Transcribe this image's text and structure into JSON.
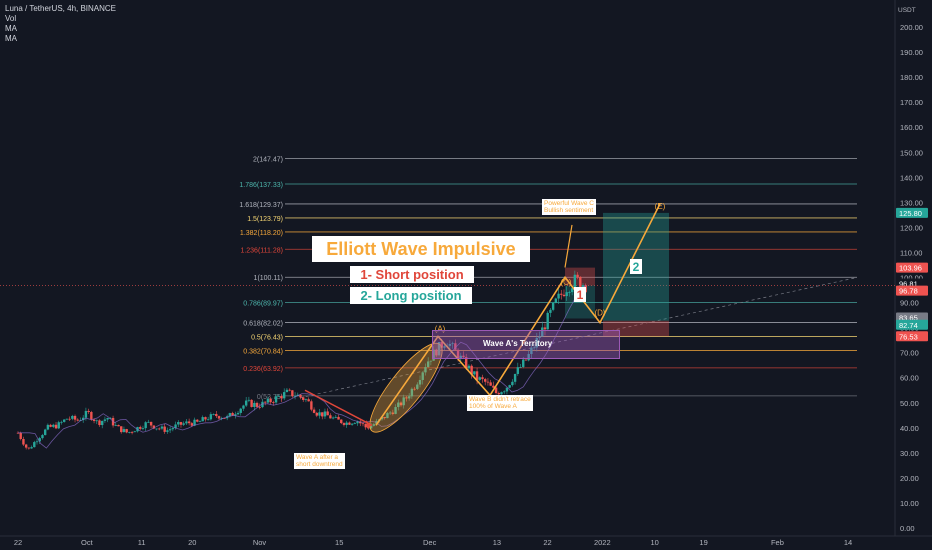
{
  "header": {
    "symbol_line": "Luna / TetherUS, 4h, BINANCE",
    "indicators": [
      "Vol",
      "MA",
      "MA"
    ]
  },
  "colors": {
    "background": "#131722",
    "up_candle": "#26a69a",
    "down_candle": "#ef5350",
    "fib_line": "#b2b5be",
    "wave_orange": "#f7a93b",
    "wave_red": "#e0463a",
    "box_purple": "#9b59b6"
  },
  "chart_data": {
    "type": "candlestick",
    "title": "Luna / TetherUS, 4h, BINANCE",
    "y_axis": {
      "unit": "USDT",
      "min": 0,
      "max": 210,
      "ticks": [
        0,
        10,
        20,
        30,
        40,
        50,
        60,
        70,
        80,
        90,
        100,
        110,
        120,
        130,
        140,
        150,
        160,
        170,
        180,
        190,
        200
      ],
      "tick_labels": [
        "0.00",
        "10.00",
        "20.00",
        "30.00",
        "40.00",
        "50.00",
        "60.00",
        "70.00",
        "80.00",
        "90.00",
        "100.00",
        "110.00",
        "120.00",
        "130.00",
        "140.00",
        "150.00",
        "160.00",
        "170.00",
        "180.00",
        "190.00",
        "200.00"
      ]
    },
    "x_axis": {
      "ticks": [
        {
          "label": "22",
          "x_frac": 0.0
        },
        {
          "label": "Oct",
          "x_frac": 0.083
        },
        {
          "label": "11",
          "x_frac": 0.149
        },
        {
          "label": "20",
          "x_frac": 0.21
        },
        {
          "label": "Nov",
          "x_frac": 0.291
        },
        {
          "label": "15",
          "x_frac": 0.387
        },
        {
          "label": "Dec",
          "x_frac": 0.496
        },
        {
          "label": "13",
          "x_frac": 0.577
        },
        {
          "label": "22",
          "x_frac": 0.638
        },
        {
          "label": "2022",
          "x_frac": 0.704
        },
        {
          "label": "10",
          "x_frac": 0.767
        },
        {
          "label": "19",
          "x_frac": 0.826
        },
        {
          "label": "Feb",
          "x_frac": 0.915
        },
        {
          "label": "14",
          "x_frac": 1.0
        }
      ]
    },
    "price_path": [
      [
        0.0,
        38
      ],
      [
        0.012,
        31
      ],
      [
        0.024,
        36
      ],
      [
        0.036,
        40
      ],
      [
        0.048,
        41
      ],
      [
        0.06,
        44
      ],
      [
        0.072,
        43
      ],
      [
        0.084,
        46
      ],
      [
        0.096,
        42
      ],
      [
        0.108,
        44
      ],
      [
        0.12,
        40
      ],
      [
        0.132,
        38
      ],
      [
        0.144,
        40
      ],
      [
        0.156,
        42
      ],
      [
        0.168,
        40
      ],
      [
        0.18,
        39
      ],
      [
        0.192,
        41
      ],
      [
        0.204,
        42
      ],
      [
        0.216,
        42
      ],
      [
        0.228,
        44
      ],
      [
        0.24,
        45
      ],
      [
        0.252,
        44
      ],
      [
        0.264,
        47
      ],
      [
        0.276,
        50
      ],
      [
        0.288,
        49
      ],
      [
        0.3,
        50
      ],
      [
        0.312,
        52
      ],
      [
        0.324,
        54
      ],
      [
        0.336,
        53
      ],
      [
        0.348,
        51
      ],
      [
        0.36,
        46
      ],
      [
        0.372,
        45
      ],
      [
        0.384,
        43
      ],
      [
        0.396,
        42
      ],
      [
        0.408,
        43
      ],
      [
        0.42,
        40
      ],
      [
        0.432,
        42
      ],
      [
        0.444,
        45
      ],
      [
        0.456,
        48
      ],
      [
        0.468,
        52
      ],
      [
        0.48,
        58
      ],
      [
        0.492,
        66
      ],
      [
        0.504,
        71
      ],
      [
        0.516,
        75
      ],
      [
        0.528,
        70
      ],
      [
        0.54,
        65
      ],
      [
        0.552,
        60
      ],
      [
        0.564,
        58
      ],
      [
        0.576,
        54
      ],
      [
        0.588,
        56
      ],
      [
        0.6,
        62
      ],
      [
        0.612,
        67
      ],
      [
        0.624,
        74
      ],
      [
        0.636,
        82
      ],
      [
        0.648,
        90
      ],
      [
        0.66,
        96
      ],
      [
        0.672,
        99
      ],
      [
        0.684,
        97
      ]
    ],
    "price_x_range": [
      0.0,
      0.684
    ],
    "fib_levels": [
      {
        "label": "2(147.47)",
        "value": 147.47,
        "color": "#b2b5be"
      },
      {
        "label": "1.786(137.33)",
        "value": 137.33,
        "color": "#4db6ac"
      },
      {
        "label": "1.618(129.37)",
        "value": 129.37,
        "color": "#b2b5be"
      },
      {
        "label": "1.5(123.79)",
        "value": 123.79,
        "color": "#f7d774"
      },
      {
        "label": "1.382(118.20)",
        "value": 118.2,
        "color": "#f7a93b"
      },
      {
        "label": "1.236(111.28)",
        "value": 111.28,
        "color": "#e0463a"
      },
      {
        "label": "1(100.11)",
        "value": 100.11,
        "color": "#b2b5be"
      },
      {
        "label": "0.786(89.97)",
        "value": 89.97,
        "color": "#4db6ac"
      },
      {
        "label": "0.618(82.02)",
        "value": 82.02,
        "color": "#b2b5be"
      },
      {
        "label": "0.5(76.43)",
        "value": 76.43,
        "color": "#f7d774"
      },
      {
        "label": "0.382(70.84)",
        "value": 70.84,
        "color": "#f7a93b"
      },
      {
        "label": "0.236(63.92)",
        "value": 63.92,
        "color": "#e0463a"
      },
      {
        "label": "0(52.75)",
        "value": 52.75,
        "color": "#787b86"
      }
    ],
    "price_tags": [
      {
        "value": 125.8,
        "label": "125.80",
        "color": "#26a69a"
      },
      {
        "value": 103.96,
        "label": "103.96",
        "color": "#ef5350"
      },
      {
        "value": 96.81,
        "label": "96.81",
        "color": "#131722"
      },
      {
        "value": 96.78,
        "label": "96.78",
        "color": "#ef5350"
      },
      {
        "value": 83.65,
        "label": "83.65",
        "color": "#787b86"
      },
      {
        "value": 82.74,
        "label": "82.74",
        "color": "#26a69a"
      },
      {
        "value": 76.53,
        "label": "76.53",
        "color": "#ef5350"
      }
    ],
    "wave_points": [
      {
        "label": "(A)",
        "value": 76.43
      },
      {
        "label": "(C)",
        "value": 100.11
      },
      {
        "label": "(D)",
        "value": 82.02
      },
      {
        "label": "(E)",
        "value": 129.37
      }
    ]
  },
  "annotations": {
    "title": "Elliott Wave Impulsive",
    "short": "1- Short position",
    "long": "2- Long position",
    "wave_a_territory": "Wave A's Territory",
    "note_wave_a": "Wave A after a\nshort downtrend",
    "note_wave_b": "Wave B didn't retrace\n100% of Wave A",
    "note_wave_c": "Powerful Wave C\nBullish sentiment",
    "step1": "1",
    "step2": "2"
  }
}
